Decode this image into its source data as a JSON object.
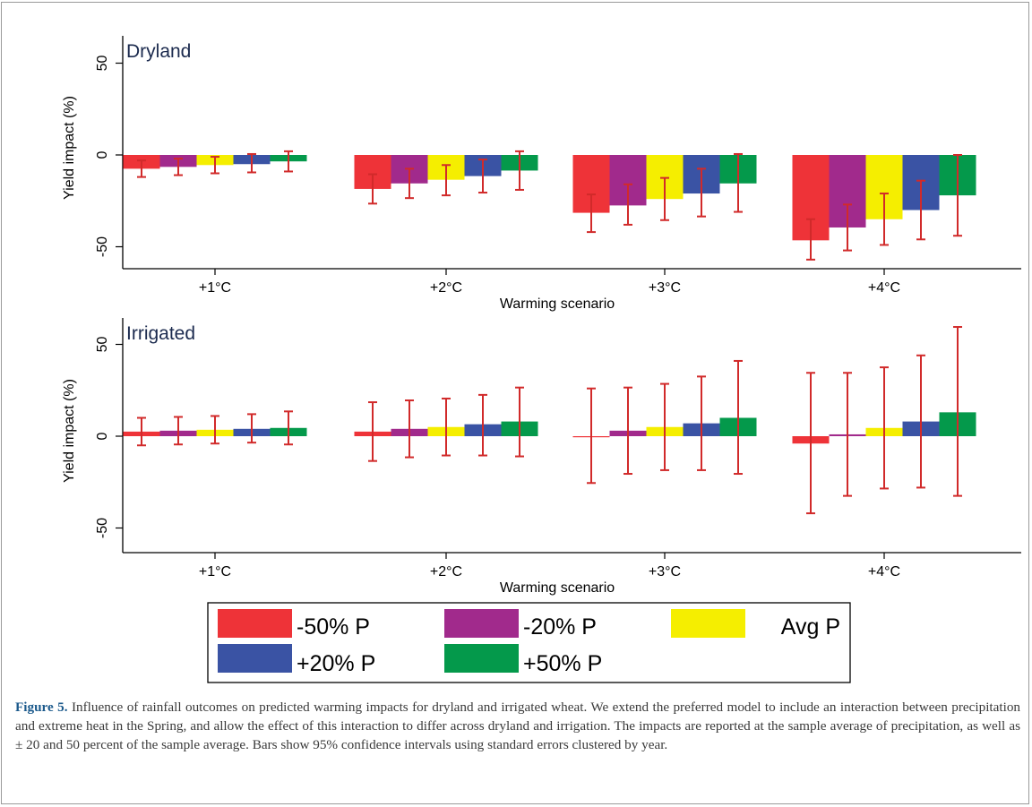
{
  "figure_label": "Figure 5.",
  "caption_text": "Influence of rainfall outcomes on predicted warming impacts for dryland and irrigated wheat. We extend the preferred model to include an interaction between precipitation and extreme heat in the Spring, and allow the effect of this interaction to differ across dryland and irrigation. The impacts are reported at the sample average of precipitation, as well as ± 20 and 50 percent of the sample average. Bars show 95% confidence intervals using standard errors clustered by year.",
  "legend": [
    {
      "name": "-50% P",
      "color": "#ee3338"
    },
    {
      "name": "-20% P",
      "color": "#a12a8c"
    },
    {
      "name": "Avg P",
      "color": "#f5ee00"
    },
    {
      "name": "+20% P",
      "color": "#3a53a4"
    },
    {
      "name": "+50% P",
      "color": "#04994b"
    }
  ],
  "colors": {
    "error_bar": "#d12a2a",
    "axis": "#000000",
    "title": "#1b2a4e"
  },
  "chart_data": [
    {
      "type": "bar",
      "title": "Dryland",
      "xlabel": "Warming scenario",
      "ylabel": "Yield impact (%)",
      "categories": [
        "+1°C",
        "+2°C",
        "+3°C",
        "+4°C"
      ],
      "ylim": [
        -62,
        65
      ],
      "yticks": [
        50,
        0,
        -50
      ],
      "series": [
        {
          "name": "-50% P",
          "values": [
            -7.5,
            -18.5,
            -31.5,
            -46.5
          ],
          "ci_low": [
            -12,
            -26.5,
            -42,
            -57
          ],
          "ci_high": [
            -3,
            -10.5,
            -21.5,
            -35
          ]
        },
        {
          "name": "-20% P",
          "values": [
            -6.5,
            -15.5,
            -27.5,
            -39.5
          ],
          "ci_low": [
            -11,
            -23.5,
            -38,
            -52
          ],
          "ci_high": [
            -2,
            -7.5,
            -16,
            -27
          ]
        },
        {
          "name": "Avg P",
          "values": [
            -5.5,
            -13.5,
            -24,
            -35
          ],
          "ci_low": [
            -10,
            -22,
            -35.5,
            -49
          ],
          "ci_high": [
            -1,
            -5.5,
            -12.5,
            -21
          ]
        },
        {
          "name": "+20% P",
          "values": [
            -5,
            -11.5,
            -21,
            -30
          ],
          "ci_low": [
            -9.5,
            -20.5,
            -33.5,
            -46
          ],
          "ci_high": [
            0.5,
            -2.5,
            -7.5,
            -14
          ]
        },
        {
          "name": "+50% P",
          "values": [
            -3.5,
            -8.5,
            -15.5,
            -22
          ],
          "ci_low": [
            -9,
            -19,
            -31,
            -44
          ],
          "ci_high": [
            2,
            2,
            0.5,
            0
          ]
        }
      ]
    },
    {
      "type": "bar",
      "title": "Irrigated",
      "xlabel": "Warming scenario",
      "ylabel": "Yield impact (%)",
      "categories": [
        "+1°C",
        "+2°C",
        "+3°C",
        "+4°C"
      ],
      "ylim": [
        -62,
        65
      ],
      "yticks": [
        50,
        0,
        -50
      ],
      "series": [
        {
          "name": "-50% P",
          "values": [
            2.5,
            2.5,
            0,
            -4
          ],
          "ci_low": [
            -5,
            -13.5,
            -25.5,
            -42
          ],
          "ci_high": [
            10,
            18.5,
            26,
            34.5
          ]
        },
        {
          "name": "-20% P",
          "values": [
            3,
            4,
            3,
            1
          ],
          "ci_low": [
            -4.5,
            -11.5,
            -20.5,
            -32.5
          ],
          "ci_high": [
            10.5,
            19.5,
            26.5,
            34.5
          ]
        },
        {
          "name": "Avg P",
          "values": [
            3.5,
            5,
            5,
            4.5
          ],
          "ci_low": [
            -4,
            -10.5,
            -18.5,
            -28.5
          ],
          "ci_high": [
            11,
            20.5,
            28.5,
            37.5
          ]
        },
        {
          "name": "+20% P",
          "values": [
            4,
            6.5,
            7,
            8
          ],
          "ci_low": [
            -3.5,
            -10.5,
            -18.5,
            -28
          ],
          "ci_high": [
            12,
            22.5,
            32.5,
            44
          ]
        },
        {
          "name": "+50% P",
          "values": [
            4.5,
            8,
            10,
            13
          ],
          "ci_low": [
            -4.5,
            -11,
            -20.5,
            -32.5
          ],
          "ci_high": [
            13.5,
            26.5,
            41,
            59.5
          ]
        }
      ]
    }
  ]
}
